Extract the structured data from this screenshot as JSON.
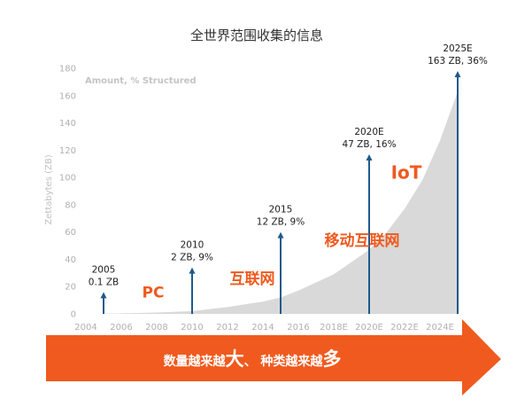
{
  "chart_data": {
    "type": "area",
    "title": "全世界范围收集的信息",
    "subtitle": "Amount, % Structured",
    "ylabel": "Zettabytes (ZB)",
    "xlabel": "",
    "ylim": [
      0,
      180
    ],
    "yticks": [
      "0",
      "20",
      "40",
      "60",
      "80",
      "100",
      "120",
      "140",
      "160",
      "180"
    ],
    "xticks": [
      "2004",
      "2006",
      "2008",
      "2010",
      "2012",
      "2014",
      "2016",
      "2018E",
      "2020E",
      "2022E",
      "2024E"
    ],
    "grid": false,
    "series": [
      {
        "x": [
          2005,
          2008,
          2010,
          2012,
          2014,
          2015,
          2016,
          2018,
          2020,
          2021,
          2022,
          2023,
          2024,
          2025
        ],
        "values": [
          0.1,
          1,
          2,
          5,
          9,
          12,
          17,
          29,
          47,
          60,
          77,
          98,
          127,
          163
        ]
      }
    ],
    "annotations": [
      {
        "year": 2005,
        "value": 16,
        "label_line1": "2005",
        "label_line2": "0.1 ZB"
      },
      {
        "year": 2010,
        "value": 34,
        "label_line1": "2010",
        "label_line2": "2 ZB, 9%"
      },
      {
        "year": 2015,
        "value": 60,
        "label_line1": "2015",
        "label_line2": "12 ZB, 9%"
      },
      {
        "year": 2020,
        "value": 117,
        "label_line1": "2020E",
        "label_line2": "47 ZB, 16%"
      },
      {
        "year": 2025,
        "value": 178,
        "label_line1": "2025E",
        "label_line2": "163 ZB, 36%"
      }
    ],
    "eras": [
      {
        "label": "PC",
        "year": 2007.8,
        "value": 12
      },
      {
        "label": "互联网",
        "year": 2013.4,
        "value": 22
      },
      {
        "label": "移动互联网",
        "year": 2019.6,
        "value": 50
      },
      {
        "label": "IoT",
        "year": 2022.1,
        "value": 99
      }
    ],
    "colors": {
      "area": "#d9d9d9",
      "arrow": "#1f5a8a",
      "accent": "#f05a1e"
    }
  },
  "banner": {
    "part1": "数量越来越",
    "part1_big": "大",
    "part2": "、 种类越来越",
    "part2_big": "多"
  }
}
